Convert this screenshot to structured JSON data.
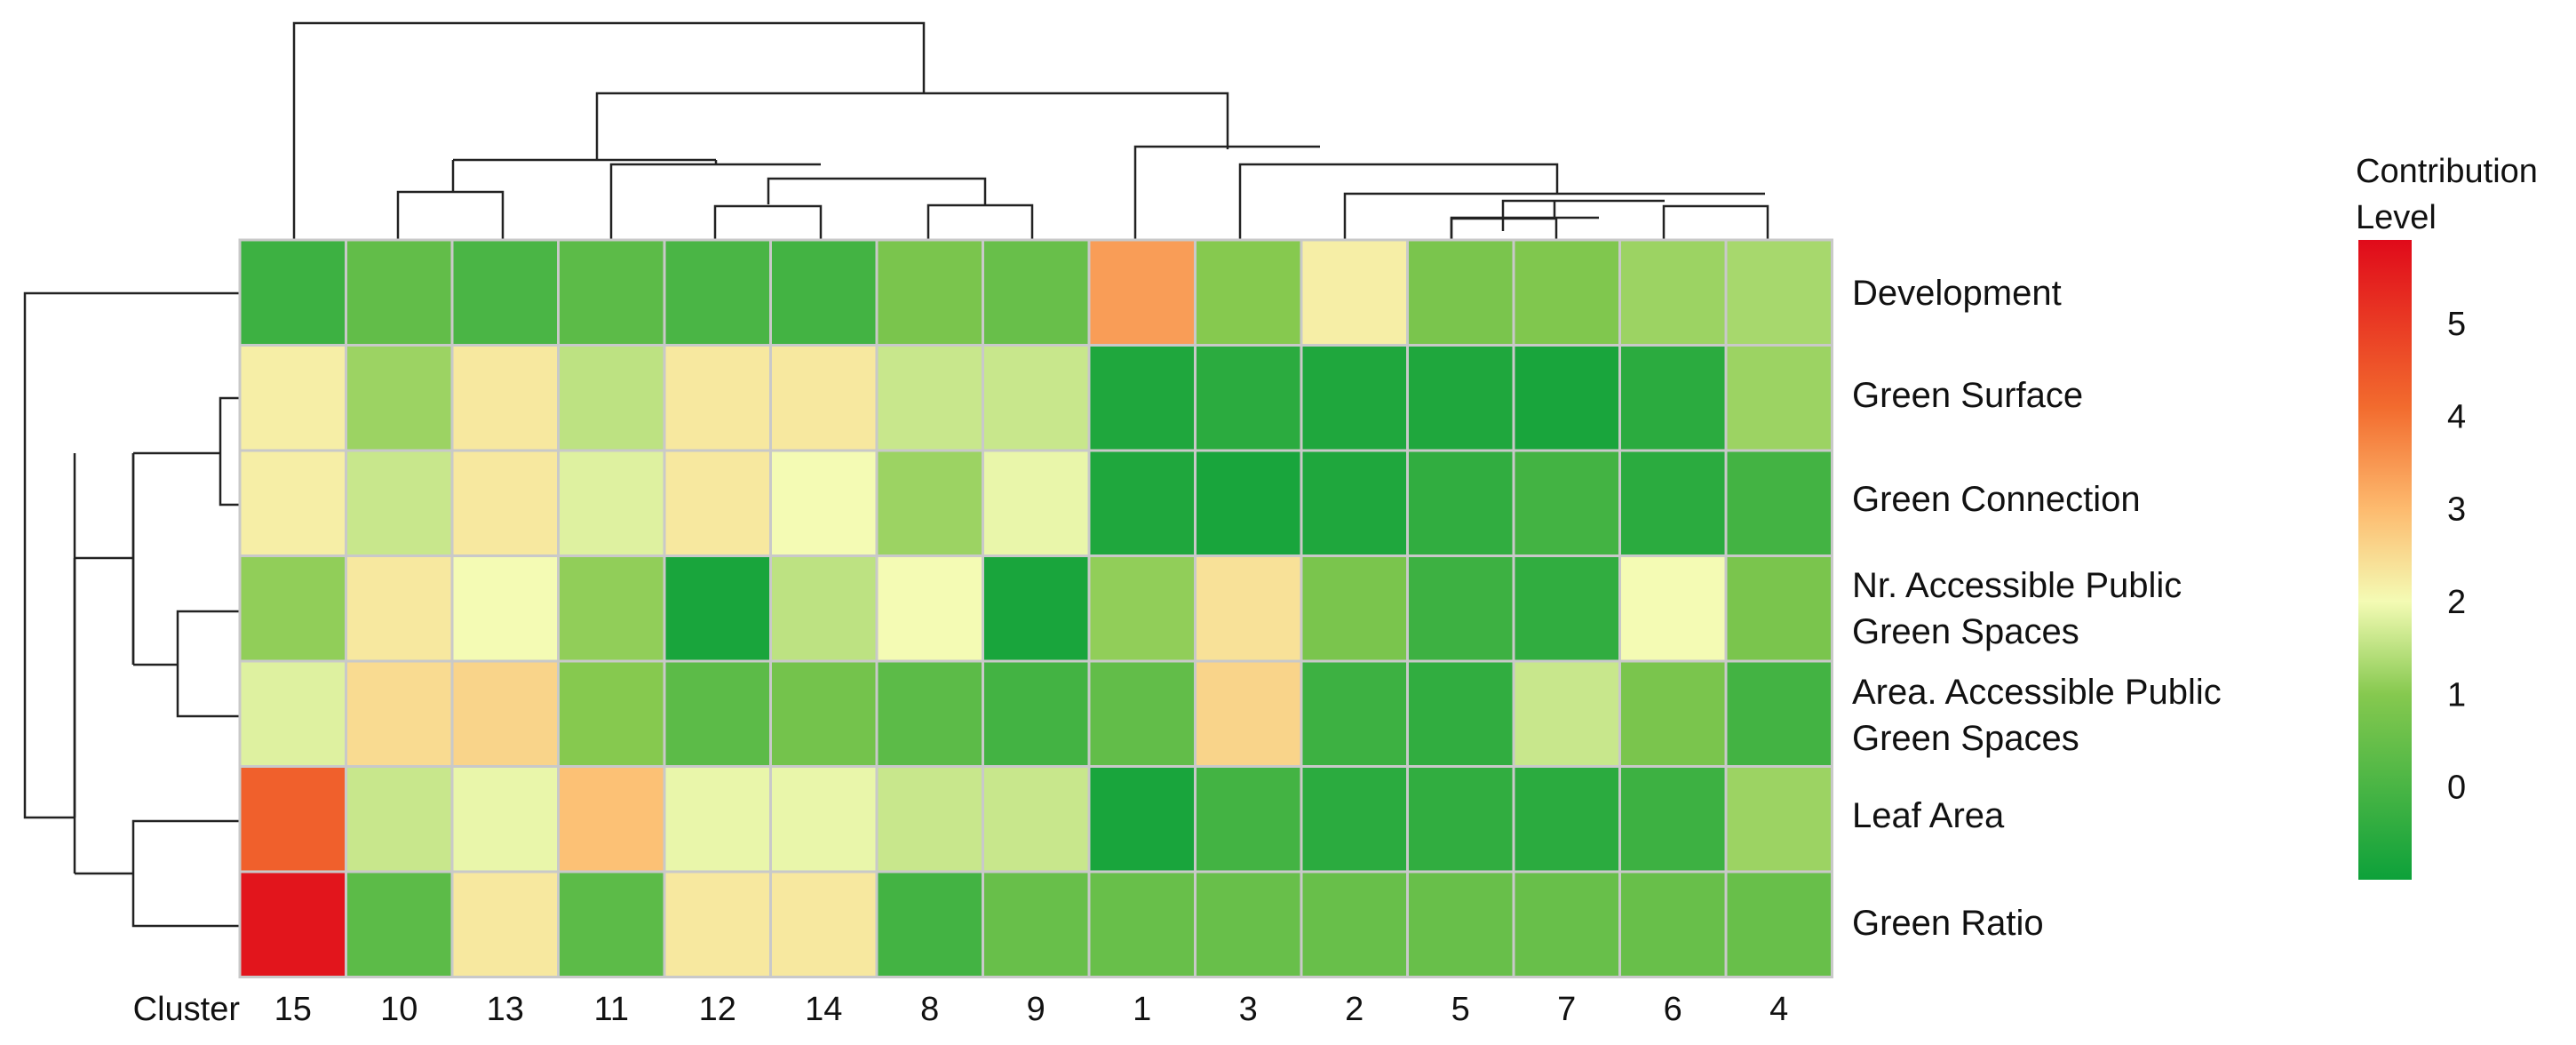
{
  "chart_data": {
    "type": "heatmap",
    "title": "",
    "x_prefix": "Cluster",
    "columns": [
      "15",
      "10",
      "13",
      "11",
      "12",
      "14",
      "8",
      "9",
      "1",
      "3",
      "2",
      "5",
      "7",
      "6",
      "4"
    ],
    "rows": [
      [
        "Development"
      ],
      [
        "Green Surface"
      ],
      [
        "Green Connection"
      ],
      [
        "Nr. Accessible Public",
        "Green Spaces"
      ],
      [
        "Area. Accessible Public",
        "Green Spaces"
      ],
      [
        "Leaf Area"
      ],
      [
        "Green Ratio"
      ]
    ],
    "values": [
      [
        -0.2,
        0.4,
        0.0,
        0.3,
        0.0,
        -0.1,
        0.8,
        0.5,
        3.4,
        1.0,
        2.2,
        0.8,
        0.9,
        1.2,
        1.3
      ],
      [
        2.2,
        1.2,
        2.3,
        1.5,
        2.3,
        2.3,
        1.6,
        1.6,
        -0.7,
        -0.5,
        -0.7,
        -0.7,
        -0.8,
        -0.5,
        1.2
      ],
      [
        2.2,
        1.6,
        2.3,
        1.8,
        2.3,
        2.0,
        1.2,
        1.9,
        -0.7,
        -0.8,
        -0.7,
        -0.4,
        -0.1,
        -0.5,
        -0.1
      ],
      [
        1.1,
        2.3,
        2.0,
        1.1,
        -0.8,
        1.5,
        2.0,
        -0.8,
        1.1,
        2.4,
        0.8,
        -0.2,
        -0.4,
        2.0,
        0.8
      ],
      [
        1.8,
        2.5,
        2.6,
        1.0,
        0.3,
        0.7,
        0.3,
        -0.1,
        0.4,
        2.6,
        -0.2,
        -0.4,
        1.6,
        0.8,
        -0.1
      ],
      [
        4.3,
        1.6,
        1.9,
        2.9,
        1.9,
        1.9,
        1.6,
        1.6,
        -0.8,
        -0.1,
        -0.5,
        -0.4,
        -0.5,
        -0.2,
        1.2
      ],
      [
        5.7,
        0.3,
        2.3,
        0.3,
        2.3,
        2.3,
        -0.1,
        0.5,
        0.5,
        0.5,
        0.5,
        0.5,
        0.5,
        0.5,
        0.5
      ]
    ],
    "legend": {
      "title": [
        "Contribution",
        "Level"
      ],
      "ticks": [
        0,
        1,
        2,
        3,
        4,
        5
      ],
      "range": [
        -1.0,
        5.9
      ],
      "colors": [
        "#0da13a",
        "#86c94f",
        "#f4fbb4",
        "#fdba6e",
        "#f26b2e",
        "#e00a1a"
      ]
    },
    "column_dendrogram": "(15,((13,10),(11,(12,14),(8,9))),((1),((3),(2,(5,(7,6,4))))))",
    "row_dendrogram": "(Development,((Green Surface,Green Connection),((Nr. Accessible Public Green Spaces,Area. Accessible Public Green Spaces),(Leaf Area,Green Ratio))))"
  }
}
